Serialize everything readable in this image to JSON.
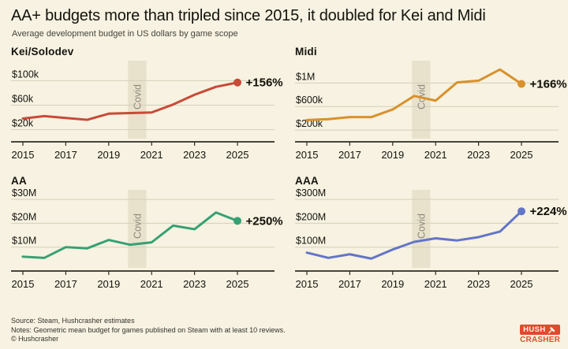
{
  "header": {
    "title": "AA+ budgets more than tripled since 2015, it doubled for Kei and Midi",
    "subtitle": "Average development budget in US dollars by game scope"
  },
  "covid_band": {
    "label": "Covid",
    "x_start": 2019.9,
    "x_end": 2020.75
  },
  "colors": {
    "background": "#f7f2e1",
    "text": "#14130e",
    "subtitle_text": "#45443c",
    "gridline": "#d5cfba",
    "axis": "#2e2c26",
    "covid_band": "#e8e2cd",
    "covid_text": "#8d897a",
    "kei_red": "#c84a39",
    "midi_orange": "#d8912c",
    "aa_green": "#36a173",
    "aaa_blue": "#6375c8",
    "brand_red": "#e2492e",
    "end_label_text": "#111009"
  },
  "chart_data": [
    {
      "id": "kei",
      "type": "line",
      "title": "Kei/Solodev",
      "color": "#c84a39",
      "x": [
        2015,
        2016,
        2017,
        2018,
        2019,
        2020,
        2021,
        2022,
        2023,
        2024,
        2025
      ],
      "values_usd": [
        38000,
        42000,
        39000,
        36000,
        46000,
        47000,
        48000,
        61000,
        77000,
        90000,
        97000
      ],
      "end_label": "+156%",
      "yticks": [
        {
          "value": 20000,
          "label": "$20k"
        },
        {
          "value": 60000,
          "label": "$60k"
        },
        {
          "value": 100000,
          "label": "$100k"
        }
      ],
      "ylim": [
        0,
        125000
      ],
      "xticks": [
        2015,
        2017,
        2019,
        2021,
        2023,
        2025
      ],
      "grid": true,
      "legend": "none"
    },
    {
      "id": "midi",
      "type": "line",
      "title": "Midi",
      "color": "#d8912c",
      "x": [
        2015,
        2016,
        2017,
        2018,
        2019,
        2020,
        2021,
        2022,
        2023,
        2024,
        2025
      ],
      "values_usd": [
        370000,
        385000,
        420000,
        420000,
        550000,
        780000,
        700000,
        1010000,
        1040000,
        1230000,
        985000
      ],
      "end_label": "+166%",
      "yticks": [
        {
          "value": 200000,
          "label": "$200k"
        },
        {
          "value": 600000,
          "label": "$600k"
        },
        {
          "value": 1000000,
          "label": "$1M"
        }
      ],
      "ylim": [
        0,
        1300000
      ],
      "xticks": [
        2015,
        2017,
        2019,
        2021,
        2023,
        2025
      ],
      "grid": true,
      "legend": "none"
    },
    {
      "id": "aa",
      "type": "line",
      "title": "AA",
      "color": "#36a173",
      "x": [
        2015,
        2016,
        2017,
        2018,
        2019,
        2020,
        2021,
        2022,
        2023,
        2024,
        2025
      ],
      "values_usd": [
        6000000,
        5500000,
        10000000,
        9500000,
        13000000,
        11000000,
        12000000,
        19000000,
        17500000,
        24500000,
        21000000
      ],
      "end_label": "+250%",
      "yticks": [
        {
          "value": 10000000,
          "label": "$10M"
        },
        {
          "value": 20000000,
          "label": "$20M"
        },
        {
          "value": 30000000,
          "label": "$30M"
        }
      ],
      "ylim": [
        0,
        32000000
      ],
      "xticks": [
        2015,
        2017,
        2019,
        2021,
        2023,
        2025
      ],
      "grid": true,
      "legend": "none"
    },
    {
      "id": "aaa",
      "type": "line",
      "title": "AAA",
      "color": "#6375c8",
      "x": [
        2015,
        2016,
        2017,
        2018,
        2019,
        2020,
        2021,
        2022,
        2023,
        2024,
        2025
      ],
      "values_usd": [
        77000000,
        55000000,
        70000000,
        52000000,
        90000000,
        122000000,
        137000000,
        128000000,
        142000000,
        165000000,
        250000000
      ],
      "end_label": "+224%",
      "yticks": [
        {
          "value": 100000000,
          "label": "$100M"
        },
        {
          "value": 200000000,
          "label": "$200M"
        },
        {
          "value": 300000000,
          "label": "$300M"
        }
      ],
      "ylim": [
        0,
        320000000
      ],
      "xticks": [
        2015,
        2017,
        2019,
        2021,
        2023,
        2025
      ],
      "grid": true,
      "legend": "none"
    }
  ],
  "footer": {
    "source": "Source: Steam, Hushcrasher estimates",
    "notes": "Notes: Geometric mean budget for games published on Steam with at least 10 reviews.",
    "copyright": "© Hushcrasher",
    "logo": {
      "top": "HUSH",
      "bottom": "CRASHER"
    }
  }
}
